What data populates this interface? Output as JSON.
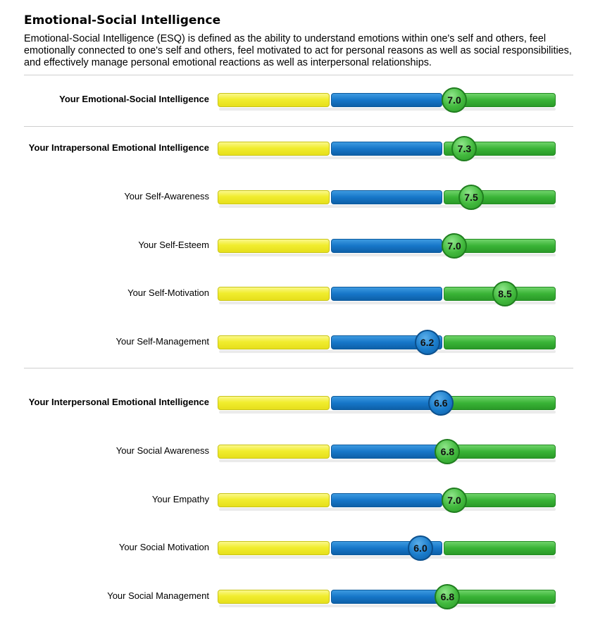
{
  "title": "Emotional-Social Intelligence",
  "description": "Emotional-Social Intelligence (ESQ) is defined as the ability to understand emotions within one's self and others, feel emotionally connected to one's self and others, feel motivated to act for personal reasons as well as social responsibilities, and effectively manage personal emotional reactions as well as interpersonal relationships.",
  "colors": {
    "low": "#f1ed2e",
    "mid": "#1676c8",
    "high": "#39b336"
  },
  "chart_data": {
    "type": "bar",
    "scale": [
      0,
      10
    ],
    "band_thresholds": [
      3.333,
      6.667
    ],
    "items": [
      {
        "label": "Your Emotional-Social Intelligence",
        "value": 7.0,
        "display": "7.0",
        "bold": true,
        "group": 0
      },
      {
        "label": "Your Intrapersonal Emotional Intelligence",
        "value": 7.3,
        "display": "7.3",
        "bold": true,
        "group": 1
      },
      {
        "label": "Your Self-Awareness",
        "value": 7.5,
        "display": "7.5",
        "bold": false,
        "group": 1
      },
      {
        "label": "Your Self-Esteem",
        "value": 7.0,
        "display": "7.0",
        "bold": false,
        "group": 1
      },
      {
        "label": "Your Self-Motivation",
        "value": 8.5,
        "display": "8.5",
        "bold": false,
        "group": 1
      },
      {
        "label": "Your Self-Management",
        "value": 6.2,
        "display": "6.2",
        "bold": false,
        "group": 1
      },
      {
        "label": "Your Interpersonal Emotional Intelligence",
        "value": 6.6,
        "display": "6.6",
        "bold": true,
        "group": 2
      },
      {
        "label": "Your Social Awareness",
        "value": 6.8,
        "display": "6.8",
        "bold": false,
        "group": 2
      },
      {
        "label": "Your Empathy",
        "value": 7.0,
        "display": "7.0",
        "bold": false,
        "group": 2
      },
      {
        "label": "Your Social Motivation",
        "value": 6.0,
        "display": "6.0",
        "bold": false,
        "group": 2
      },
      {
        "label": "Your Social Management",
        "value": 6.8,
        "display": "6.8",
        "bold": false,
        "group": 2
      }
    ]
  }
}
